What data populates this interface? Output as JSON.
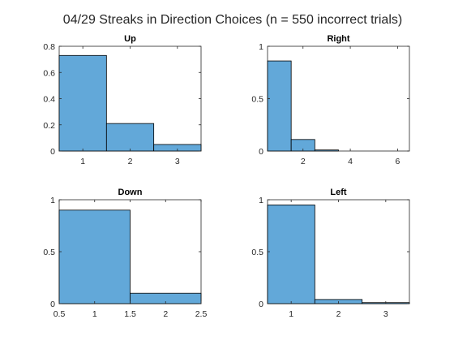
{
  "figure_title": "04/29 Streaks in Direction Choices (n = 550 incorrect trials)",
  "colors": {
    "bar_fill": "#62a8d9",
    "bar_edge": "#000000",
    "axis": "#262626",
    "background": "#ffffff"
  },
  "chart_data": [
    {
      "type": "bar",
      "title": "Up",
      "categories": [
        1,
        2,
        3
      ],
      "values": [
        0.73,
        0.21,
        0.05
      ],
      "bin_width": 1,
      "xlim": [
        0.5,
        3.5
      ],
      "ylim": [
        0,
        0.8
      ],
      "xticks": [
        1,
        2,
        3
      ],
      "xtick_labels": [
        "1",
        "2",
        "3"
      ],
      "yticks": [
        0,
        0.2,
        0.4,
        0.6,
        0.8
      ],
      "ytick_labels": [
        "0",
        "0.2",
        "0.4",
        "0.6",
        "0.8"
      ],
      "xlabel": "",
      "ylabel": ""
    },
    {
      "type": "bar",
      "title": "Right",
      "categories": [
        1,
        2,
        3,
        4,
        5,
        6
      ],
      "values": [
        0.86,
        0.11,
        0.01,
        0,
        0,
        0
      ],
      "bin_width": 1,
      "xlim": [
        0.5,
        6.5
      ],
      "ylim": [
        0,
        1
      ],
      "xticks": [
        2,
        4,
        6
      ],
      "xtick_labels": [
        "2",
        "4",
        "6"
      ],
      "yticks": [
        0,
        0.5,
        1
      ],
      "ytick_labels": [
        "0",
        "0.5",
        "1"
      ],
      "xlabel": "",
      "ylabel": ""
    },
    {
      "type": "bar",
      "title": "Down",
      "categories": [
        1,
        2
      ],
      "values": [
        0.9,
        0.1
      ],
      "bin_width": 1,
      "xlim": [
        0.5,
        2.5
      ],
      "ylim": [
        0,
        1
      ],
      "xticks": [
        0.5,
        1,
        1.5,
        2,
        2.5
      ],
      "xtick_labels": [
        "0.5",
        "1",
        "1.5",
        "2",
        "2.5"
      ],
      "yticks": [
        0,
        0.5,
        1
      ],
      "ytick_labels": [
        "0",
        "0.5",
        "1"
      ],
      "xlabel": "",
      "ylabel": ""
    },
    {
      "type": "bar",
      "title": "Left",
      "categories": [
        1,
        2,
        3
      ],
      "values": [
        0.95,
        0.04,
        0.01
      ],
      "bin_width": 1,
      "xlim": [
        0.5,
        3.5
      ],
      "ylim": [
        0,
        1
      ],
      "xticks": [
        1,
        2,
        3
      ],
      "xtick_labels": [
        "1",
        "2",
        "3"
      ],
      "yticks": [
        0,
        0.5,
        1
      ],
      "ytick_labels": [
        "0",
        "0.5",
        "1"
      ],
      "xlabel": "",
      "ylabel": ""
    }
  ]
}
